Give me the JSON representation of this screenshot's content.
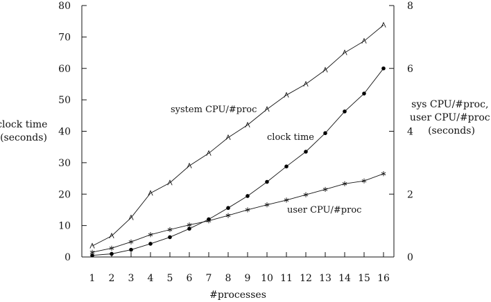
{
  "chart_data": {
    "type": "line",
    "x": [
      1,
      2,
      3,
      4,
      5,
      6,
      7,
      8,
      9,
      10,
      11,
      12,
      13,
      14,
      15,
      16
    ],
    "xlabel": "#processes",
    "ylabel_left": [
      "clock time",
      "(seconds)"
    ],
    "ylabel_right": [
      "sys CPU/#proc,",
      "user CPU/#proc",
      "(seconds)"
    ],
    "ylim_left": [
      0,
      80
    ],
    "ylim_right": [
      0,
      8
    ],
    "yticks_left": [
      0,
      10,
      20,
      30,
      40,
      50,
      60,
      70,
      80
    ],
    "yticks_right": [
      0,
      2,
      4,
      6,
      8
    ],
    "xticks": [
      1,
      2,
      3,
      4,
      5,
      6,
      7,
      8,
      9,
      10,
      11,
      12,
      13,
      14,
      15,
      16
    ],
    "grid": false,
    "legend": "none (series labelled inline)",
    "series": [
      {
        "name": "system CPU/#proc",
        "axis": "right",
        "marker": "triangle",
        "values": [
          0.35,
          0.67,
          1.25,
          2.03,
          2.36,
          2.9,
          3.3,
          3.8,
          4.2,
          4.7,
          5.15,
          5.5,
          5.95,
          6.5,
          6.87,
          7.38
        ]
      },
      {
        "name": "clock time",
        "axis": "left",
        "marker": "dot",
        "values": [
          0.5,
          1.0,
          2.3,
          4.2,
          6.3,
          9.0,
          12.0,
          15.6,
          19.4,
          23.9,
          28.8,
          33.5,
          39.4,
          46.3,
          52.0,
          60.0
        ]
      },
      {
        "name": "user CPU/#proc",
        "axis": "right",
        "marker": "star",
        "values": [
          0.15,
          0.28,
          0.48,
          0.71,
          0.87,
          1.02,
          1.15,
          1.32,
          1.5,
          1.66,
          1.81,
          1.98,
          2.15,
          2.33,
          2.42,
          2.65
        ]
      }
    ]
  }
}
